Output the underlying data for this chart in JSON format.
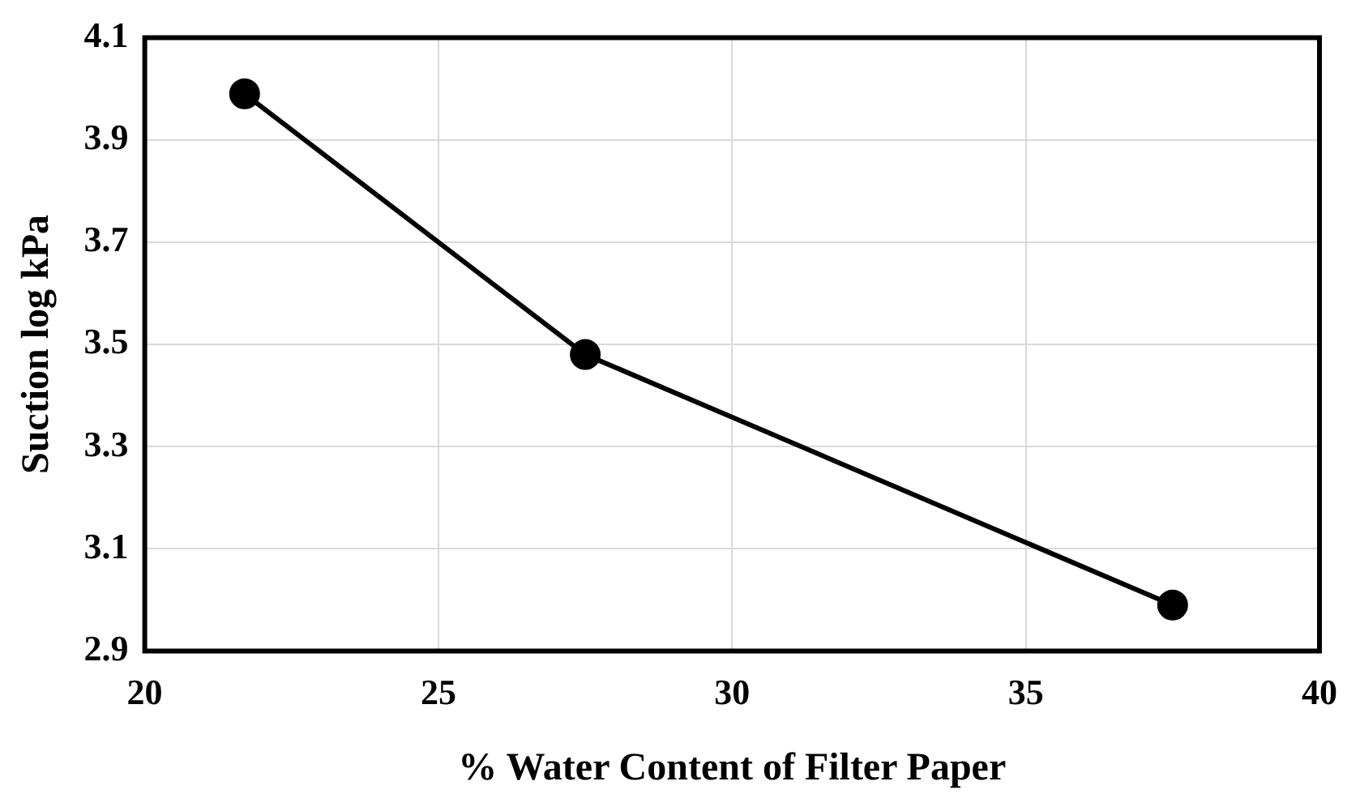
{
  "chart_data": {
    "type": "line",
    "xlabel": "% Water Content of Filter Paper",
    "ylabel": "Suction log kPa",
    "x": [
      21.7,
      27.5,
      37.5
    ],
    "series": [
      {
        "color": "#000000",
        "values": [
          3.99,
          3.48,
          2.99
        ]
      }
    ],
    "xlim": [
      20,
      40
    ],
    "xticks": [
      20,
      25,
      30,
      35,
      40
    ],
    "ylim": [
      2.9,
      4.1
    ],
    "yticks": [
      {
        "value": 2.9,
        "label": "2.9"
      },
      {
        "value": 3.1,
        "label": "3.1"
      },
      {
        "value": 3.3,
        "label": "3.3"
      },
      {
        "value": 3.5,
        "label": "3.5"
      },
      {
        "value": 3.7,
        "label": "3.7"
      },
      {
        "value": 3.9,
        "label": "3.9"
      },
      {
        "value": 4.1,
        "label": "4.1"
      }
    ],
    "grid": true,
    "legend": false,
    "marker": "circle",
    "line_style": "solid"
  }
}
